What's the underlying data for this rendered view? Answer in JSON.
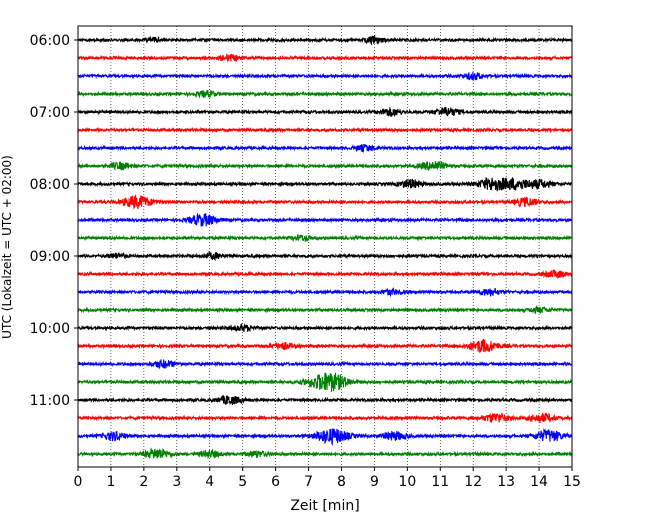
{
  "chart_data": {
    "type": "line",
    "title": "",
    "xlabel": "Zeit  [min]",
    "ylabel": "UTC (Lokalzeit = UTC + 02:00)",
    "xlim": [
      0,
      15
    ],
    "x_ticks": [
      0,
      1,
      2,
      3,
      4,
      5,
      6,
      7,
      8,
      9,
      10,
      11,
      12,
      13,
      14,
      15
    ],
    "x_tick_labels": [
      "0",
      "1",
      "2",
      "3",
      "4",
      "5",
      "6",
      "7",
      "8",
      "9",
      "10",
      "11",
      "12",
      "13",
      "14",
      "15"
    ],
    "grid": "vertical dotted lines at each minute",
    "trace_interval_minutes": 15,
    "y_tick_labels": [
      "06:00",
      "07:00",
      "08:00",
      "09:00",
      "10:00",
      "11:00"
    ],
    "trace_colors": [
      "#000000",
      "#ff0000",
      "#0000ff",
      "#008000"
    ],
    "traces": [
      {
        "start": "06:00",
        "color": "#000000",
        "events": [
          [
            2.3,
            0.25
          ],
          [
            9.0,
            0.35
          ]
        ]
      },
      {
        "start": "06:15",
        "color": "#ff0000",
        "events": [
          [
            4.6,
            0.35
          ]
        ]
      },
      {
        "start": "06:30",
        "color": "#0000ff",
        "events": [
          [
            12.0,
            0.4
          ]
        ]
      },
      {
        "start": "06:45",
        "color": "#008000",
        "events": [
          [
            3.9,
            0.35
          ]
        ]
      },
      {
        "start": "07:00",
        "color": "#000000",
        "events": [
          [
            9.5,
            0.45
          ],
          [
            11.2,
            0.5
          ]
        ]
      },
      {
        "start": "07:15",
        "color": "#ff0000",
        "events": []
      },
      {
        "start": "07:30",
        "color": "#0000ff",
        "events": [
          [
            8.7,
            0.35
          ]
        ]
      },
      {
        "start": "07:45",
        "color": "#008000",
        "events": [
          [
            1.3,
            0.4
          ],
          [
            10.8,
            0.55
          ]
        ]
      },
      {
        "start": "08:00",
        "color": "#000000",
        "events": [
          [
            10.1,
            0.5
          ],
          [
            12.6,
            0.75
          ],
          [
            13.3,
            0.6
          ],
          [
            14.0,
            0.5
          ]
        ]
      },
      {
        "start": "08:15",
        "color": "#ff0000",
        "events": [
          [
            1.8,
            0.75
          ],
          [
            13.6,
            0.5
          ]
        ]
      },
      {
        "start": "08:30",
        "color": "#0000ff",
        "events": [
          [
            3.8,
            0.7
          ]
        ]
      },
      {
        "start": "08:45",
        "color": "#008000",
        "events": [
          [
            6.8,
            0.3
          ]
        ]
      },
      {
        "start": "09:00",
        "color": "#000000",
        "events": [
          [
            1.2,
            0.3
          ],
          [
            4.1,
            0.35
          ]
        ]
      },
      {
        "start": "09:15",
        "color": "#ff0000",
        "events": [
          [
            14.5,
            0.4
          ]
        ]
      },
      {
        "start": "09:30",
        "color": "#0000ff",
        "events": [
          [
            9.5,
            0.3
          ],
          [
            12.5,
            0.4
          ]
        ]
      },
      {
        "start": "09:45",
        "color": "#008000",
        "events": [
          [
            14.0,
            0.3
          ]
        ]
      },
      {
        "start": "10:00",
        "color": "#000000",
        "events": [
          [
            5.0,
            0.35
          ]
        ]
      },
      {
        "start": "10:15",
        "color": "#ff0000",
        "events": [
          [
            6.2,
            0.4
          ],
          [
            12.3,
            0.75
          ]
        ]
      },
      {
        "start": "10:30",
        "color": "#0000ff",
        "events": [
          [
            2.6,
            0.45
          ]
        ]
      },
      {
        "start": "10:45",
        "color": "#008000",
        "events": [
          [
            7.6,
            1.15
          ]
        ]
      },
      {
        "start": "11:00",
        "color": "#000000",
        "events": [
          [
            4.6,
            0.5
          ]
        ]
      },
      {
        "start": "11:15",
        "color": "#ff0000",
        "events": [
          [
            12.7,
            0.55
          ],
          [
            14.1,
            0.5
          ]
        ]
      },
      {
        "start": "11:30",
        "color": "#0000ff",
        "events": [
          [
            1.1,
            0.5
          ],
          [
            7.7,
            0.9
          ],
          [
            9.6,
            0.5
          ],
          [
            14.3,
            0.7
          ]
        ]
      },
      {
        "start": "11:45",
        "color": "#008000",
        "events": [
          [
            2.4,
            0.6
          ],
          [
            4.0,
            0.4
          ],
          [
            5.4,
            0.35
          ]
        ]
      }
    ]
  }
}
